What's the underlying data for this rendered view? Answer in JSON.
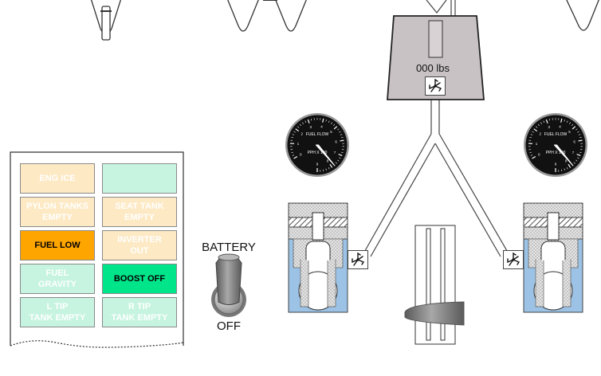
{
  "tank": {
    "quantity_text": "000 lbs"
  },
  "gauges": {
    "left": {
      "title": "FUEL FLOW",
      "units": "PPH X 100",
      "ticks": [
        "0",
        "1",
        "2",
        "3",
        "4",
        "5",
        "6",
        "7",
        "8",
        "9"
      ]
    },
    "right": {
      "title": "FUEL FLOW",
      "units": "PPH X 100",
      "ticks": [
        "0",
        "1",
        "2",
        "3",
        "4",
        "5",
        "6",
        "7",
        "8",
        "9"
      ]
    }
  },
  "battery": {
    "label": "BATTERY",
    "state_label": "OFF"
  },
  "annunciators": [
    {
      "text": "ENG ICE",
      "bg": "#fde9c4",
      "fg": "#ffffff"
    },
    {
      "text": "",
      "bg": "#c6f4e0",
      "fg": "#ffffff"
    },
    {
      "text": "PYLON TANKS\nEMPTY",
      "bg": "#fde9c4",
      "fg": "#ffffff"
    },
    {
      "text": "SEAT TANK\nEMPTY",
      "bg": "#fde9c4",
      "fg": "#ffffff"
    },
    {
      "text": "FUEL LOW",
      "bg": "#ffa500",
      "fg": "#000000"
    },
    {
      "text": "INVERTER\nOUT",
      "bg": "#fde9c4",
      "fg": "#ffffff"
    },
    {
      "text": "FUEL\nGRAVITY",
      "bg": "#c6f4e0",
      "fg": "#ffffff"
    },
    {
      "text": "BOOST OFF",
      "bg": "#00e58a",
      "fg": "#000000"
    },
    {
      "text": "L TIP\nTANK EMPTY",
      "bg": "#c6f4e0",
      "fg": "#ffffff"
    },
    {
      "text": "R TIP\nTANK EMPTY",
      "bg": "#c6f4e0",
      "fg": "#ffffff"
    }
  ],
  "colors": {
    "tank_fill": "#c8c2c4",
    "pump_blue": "#9cc3e6",
    "pump_stipple": "#d9d9d9",
    "panel_border": "#333333"
  },
  "icons": [
    "fan-icon",
    "toggle-switch-icon",
    "fuel-pump-icon",
    "fuel-flow-gauge-icon"
  ]
}
